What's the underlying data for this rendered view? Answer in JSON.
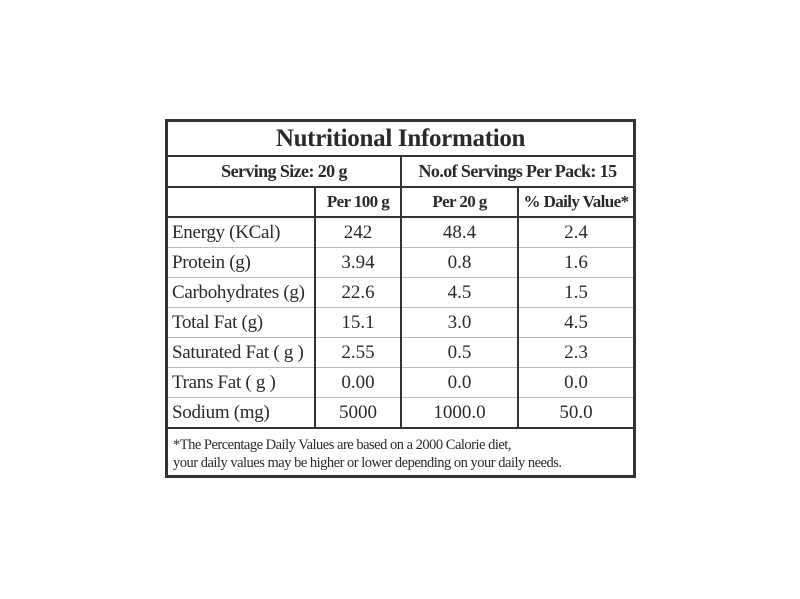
{
  "title": "Nutritional Information",
  "serving_size": "Serving Size: 20 g",
  "servings_per_pack": "No.of Servings Per Pack: 15",
  "columns": [
    "",
    "Per 100 g",
    "Per 20 g",
    "% Daily Value*"
  ],
  "rows": [
    [
      "Energy (KCal)",
      "242",
      "48.4",
      "2.4"
    ],
    [
      "Protein (g)",
      "3.94",
      "0.8",
      "1.6"
    ],
    [
      "Carbohydrates (g)",
      "22.6",
      "4.5",
      "1.5"
    ],
    [
      "Total Fat (g)",
      "15.1",
      "3.0",
      "4.5"
    ],
    [
      "Saturated Fat ( g )",
      "2.55",
      "0.5",
      "2.3"
    ],
    [
      "Trans Fat ( g )",
      "0.00",
      "0.0",
      "0.0"
    ],
    [
      "Sodium (mg)",
      "5000",
      "1000.0",
      "50.0"
    ]
  ],
  "footnote_line1": "*The Percentage Daily Values are based on a 2000 Calorie diet,",
  "footnote_line2": "your daily values may be higher or lower depending on your daily needs."
}
